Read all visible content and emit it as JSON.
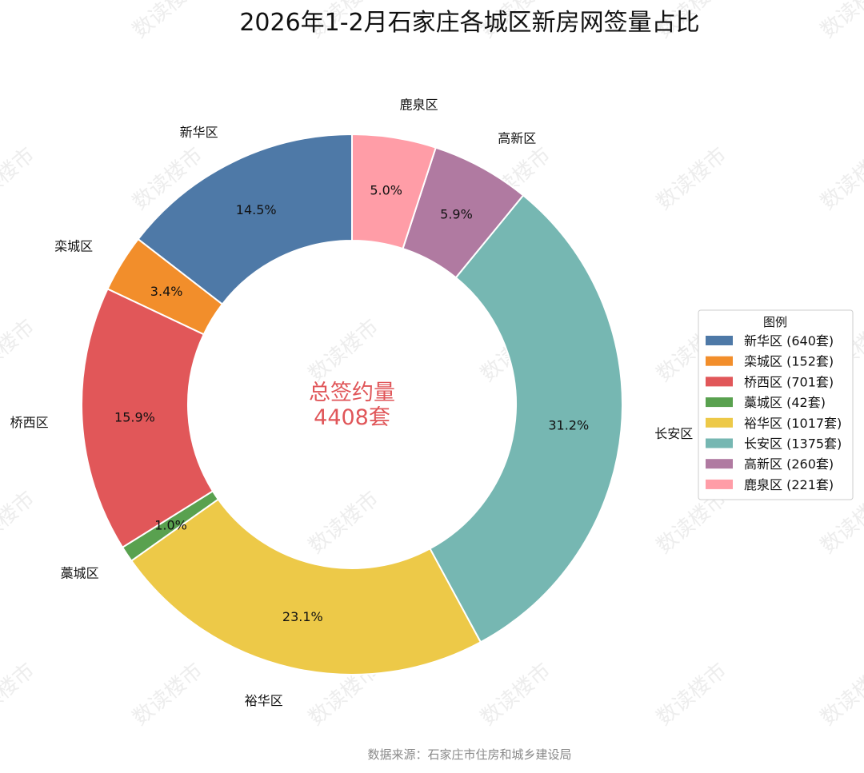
{
  "chart_data": {
    "type": "pie",
    "title": "2026年1-2月石家庄各城区新房网签量占比",
    "categories": [
      "新华区",
      "栾城区",
      "桥西区",
      "藁城区",
      "裕华区",
      "长安区",
      "高新区",
      "鹿泉区"
    ],
    "values": [
      640,
      152,
      701,
      42,
      1017,
      1375,
      260,
      221
    ],
    "percent_labels": [
      "14.5%",
      "3.4%",
      "15.9%",
      "1.0%",
      "23.1%",
      "31.2%",
      "5.9%",
      "5.0%"
    ],
    "colors": [
      "#4e79a7",
      "#f28e2b",
      "#e15759",
      "#59a14f",
      "#edc948",
      "#76b7b2",
      "#b07aa1",
      "#ff9da7"
    ],
    "legend_title": "图例",
    "legend_labels": [
      "新华区 (640套)",
      "栾城区 (152套)",
      "桥西区 (701套)",
      "藁城区 (42套)",
      "裕华区 (1017套)",
      "长安区 (1375套)",
      "高新区 (260套)",
      "鹿泉区 (221套)"
    ],
    "legend_position": "right",
    "center_label": [
      "总签约量",
      "4408套"
    ],
    "center_color": "#e05659",
    "start_angle": "12 o'clock",
    "direction": "counterclockwise"
  },
  "source": "数据来源：石家庄市住房和城乡建设局",
  "watermark": "数读楼市"
}
